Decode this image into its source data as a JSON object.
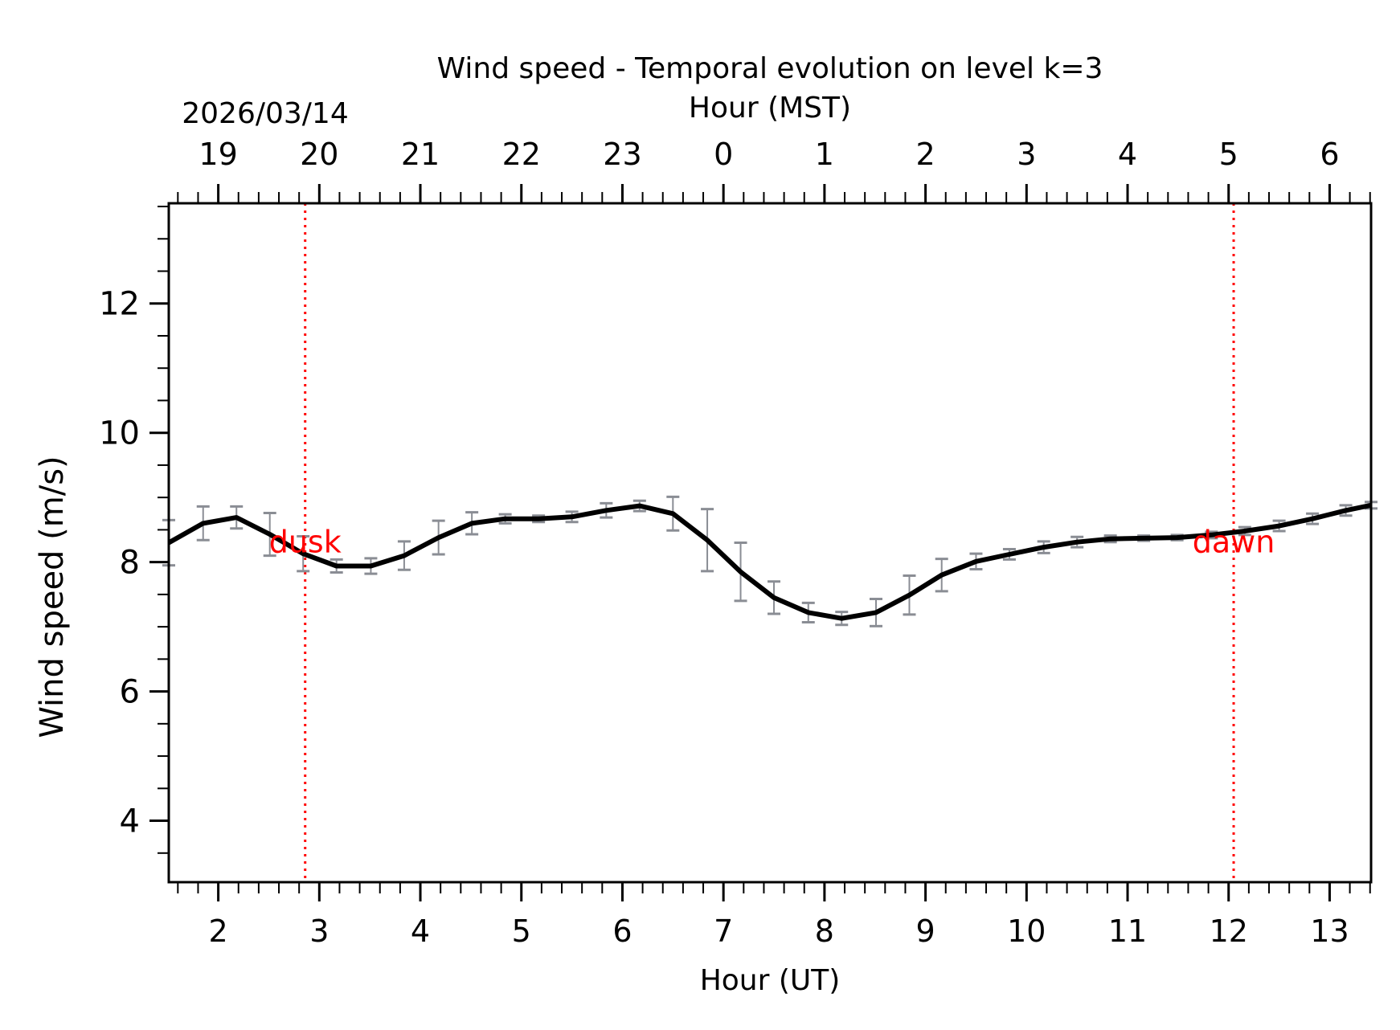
{
  "chart_data": {
    "type": "line",
    "title": "Wind speed - Temporal evolution on level k=3",
    "xlabel": "Hour (UT)",
    "ylabel": "Wind speed (m/s)",
    "top_xlabel": "Hour (MST)",
    "date_label": "2026/03/14",
    "xlim": [
      1.51,
      13.41
    ],
    "ylim": [
      3.05,
      13.55
    ],
    "grid": false,
    "x_ticks": [
      2,
      3,
      4,
      5,
      6,
      7,
      8,
      9,
      10,
      11,
      12,
      13
    ],
    "x_tick_labels": [
      "2",
      "3",
      "4",
      "5",
      "6",
      "7",
      "8",
      "9",
      "10",
      "11",
      "12",
      "13"
    ],
    "top_ticks_ut": [
      2,
      3,
      4,
      5,
      6,
      7,
      8,
      9,
      10,
      11,
      12,
      13
    ],
    "top_tick_labels": [
      "19",
      "20",
      "21",
      "22",
      "23",
      "0",
      "1",
      "2",
      "3",
      "4",
      "5",
      "6"
    ],
    "y_ticks": [
      4,
      6,
      8,
      10,
      12
    ],
    "y_tick_labels": [
      "4",
      "6",
      "8",
      "10",
      "12"
    ],
    "y_minor_step": 0.5,
    "x_minor_step": 0.2,
    "series": [
      {
        "name": "Wind speed",
        "color": "#000000",
        "x": [
          1.51,
          1.85,
          2.18,
          2.51,
          2.84,
          3.17,
          3.51,
          3.84,
          4.18,
          4.51,
          4.84,
          5.17,
          5.5,
          5.84,
          6.17,
          6.5,
          6.84,
          7.17,
          7.5,
          7.84,
          8.17,
          8.51,
          8.84,
          9.16,
          9.5,
          9.83,
          10.17,
          10.5,
          10.83,
          11.16,
          11.49,
          11.83,
          12.16,
          12.5,
          12.83,
          13.16,
          13.41
        ],
        "y": [
          8.3,
          8.6,
          8.69,
          8.43,
          8.13,
          7.94,
          7.94,
          8.1,
          8.38,
          8.6,
          8.67,
          8.67,
          8.7,
          8.8,
          8.87,
          8.75,
          8.34,
          7.85,
          7.45,
          7.22,
          7.13,
          7.22,
          7.49,
          7.8,
          8.01,
          8.12,
          8.23,
          8.31,
          8.36,
          8.37,
          8.38,
          8.42,
          8.48,
          8.56,
          8.67,
          8.8,
          8.88
        ],
        "err": [
          0.35,
          0.26,
          0.17,
          0.33,
          0.27,
          0.1,
          0.12,
          0.22,
          0.26,
          0.17,
          0.07,
          0.05,
          0.08,
          0.11,
          0.08,
          0.26,
          0.48,
          0.45,
          0.25,
          0.15,
          0.1,
          0.21,
          0.3,
          0.25,
          0.12,
          0.08,
          0.09,
          0.08,
          0.05,
          0.04,
          0.04,
          0.05,
          0.06,
          0.08,
          0.08,
          0.08,
          0.05
        ]
      }
    ],
    "errorbar_color": "#8a8d94",
    "annotations": [
      {
        "label": "dusk",
        "x": 2.86,
        "color": "#ff0000",
        "y": 8.3
      },
      {
        "label": "dawn",
        "x": 12.05,
        "color": "#ff0000",
        "y": 8.3
      }
    ]
  }
}
